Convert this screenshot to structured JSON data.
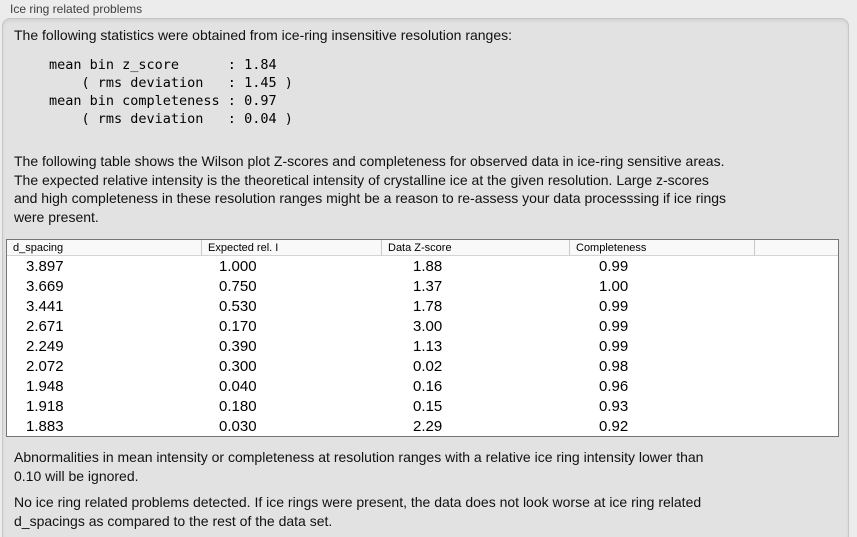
{
  "window": {
    "title": "Ice ring related problems"
  },
  "panel": {
    "intro": "The following statistics were obtained from ice-ring insensitive resolution ranges:",
    "stats_block": "mean bin z_score      : 1.84\n    ( rms deviation   : 1.45 )\nmean bin completeness : 0.97\n    ( rms deviation   : 0.04 )",
    "stats": {
      "mean_bin_z_score": "1.84",
      "z_score_rms_deviation": "1.45",
      "mean_bin_completeness": "0.97",
      "completeness_rms_deviation": "0.04"
    },
    "description": "The following table shows the Wilson plot Z-scores and completeness for observed data in ice-ring sensitive areas.\nThe expected relative intensity is the theoretical intensity of crystalline ice at the given resolution. Large z-scores\nand high completeness in these resolution ranges might be a reason to re-assess your data processsing if ice rings\nwere present.",
    "note_ignore": "Abnormalities in mean intensity or completeness at resolution ranges with a relative ice ring intensity lower than\n0.10 will be ignored.",
    "conclusion": "No ice ring related problems detected. If ice rings were present, the data does not look worse at ice ring related\nd_spacings as compared to the rest of the data set."
  },
  "table": {
    "columns": [
      "d_spacing",
      "Expected rel. I",
      "Data Z-score",
      "Completeness"
    ],
    "rows": [
      [
        "3.897",
        "1.000",
        "1.88",
        "0.99"
      ],
      [
        "3.669",
        "0.750",
        "1.37",
        "1.00"
      ],
      [
        "3.441",
        "0.530",
        "1.78",
        "0.99"
      ],
      [
        "2.671",
        "0.170",
        "3.00",
        "0.99"
      ],
      [
        "2.249",
        "0.390",
        "1.13",
        "0.99"
      ],
      [
        "2.072",
        "0.300",
        "0.02",
        "0.98"
      ],
      [
        "1.948",
        "0.040",
        "0.16",
        "0.96"
      ],
      [
        "1.918",
        "0.180",
        "0.15",
        "0.93"
      ],
      [
        "1.883",
        "0.030",
        "2.29",
        "0.92"
      ]
    ]
  },
  "colors": {
    "outer_background": "#ececec",
    "panel_background": "#e2e2e2",
    "table_border": "#757575",
    "header_background": "#f9f9f9"
  }
}
